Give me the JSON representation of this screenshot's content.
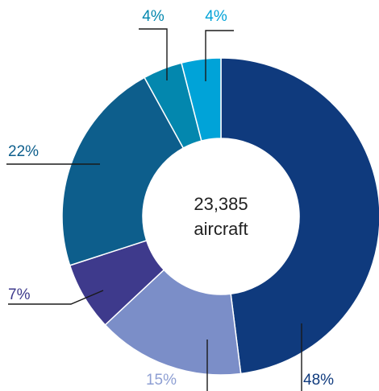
{
  "chart_data": {
    "type": "pie",
    "style": "donut",
    "center_label": {
      "value": "23,385",
      "unit": "aircraft"
    },
    "slices": [
      {
        "label": "48%",
        "value": 48,
        "color": "#0f3a7d"
      },
      {
        "label": "15%",
        "value": 15,
        "color": "#7b8ec8"
      },
      {
        "label": "7%",
        "value": 7,
        "color": "#3e3a8c"
      },
      {
        "label": "22%",
        "value": 22,
        "color": "#0d5e8c"
      },
      {
        "label": "4%",
        "value": 4,
        "color": "#0387ae"
      },
      {
        "label": "4%",
        "value": 4,
        "color": "#00a3d8"
      }
    ],
    "label_colors": [
      "#0f3a7d",
      "#8e9fd3",
      "#3e3a8c",
      "#0d5e8c",
      "#0387ae",
      "#00a3d8"
    ]
  }
}
